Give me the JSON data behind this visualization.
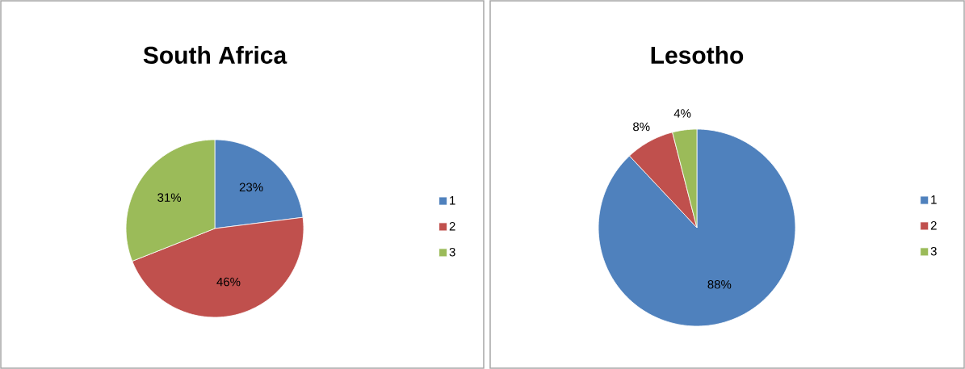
{
  "chart_data": [
    {
      "type": "pie",
      "title": "South Africa",
      "categories": [
        "1",
        "2",
        "3"
      ],
      "values": [
        23,
        46,
        31
      ],
      "colors": [
        "#4f81bd",
        "#c0504d",
        "#9bbb59"
      ],
      "value_labels": [
        "23%",
        "46%",
        "31%"
      ],
      "legend": "right"
    },
    {
      "type": "pie",
      "title": "Lesotho",
      "categories": [
        "1",
        "2",
        "3"
      ],
      "values": [
        88,
        8,
        4
      ],
      "colors": [
        "#4f81bd",
        "#c0504d",
        "#9bbb59"
      ],
      "value_labels": [
        "88%",
        "8%",
        "4%"
      ],
      "legend": "right"
    }
  ]
}
